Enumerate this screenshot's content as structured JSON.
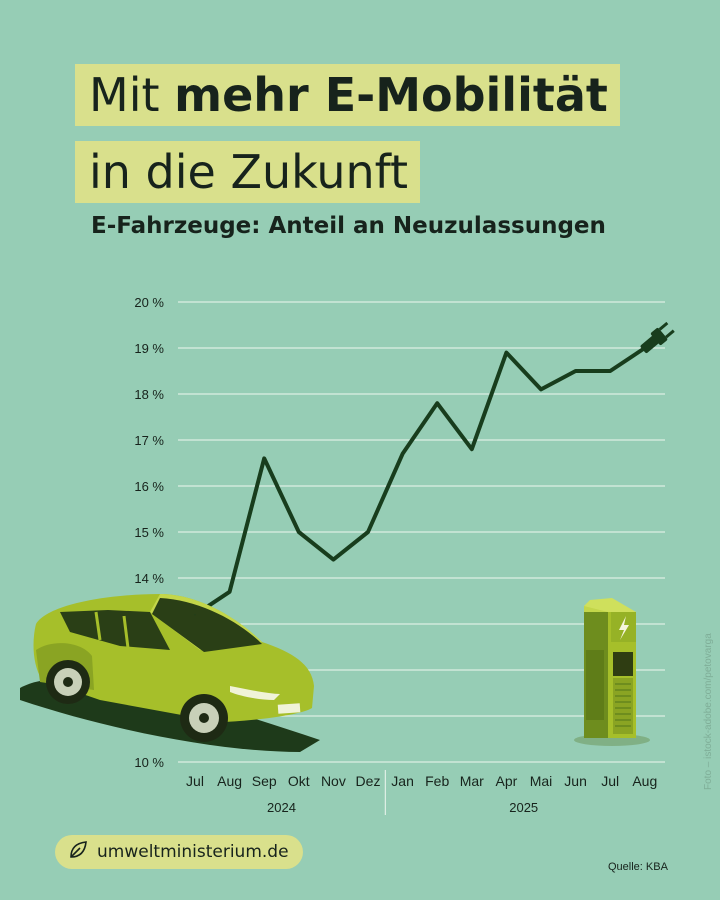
{
  "header": {
    "title_line1_normal": "Mit ",
    "title_line1_bold": "mehr E-Mobilität",
    "title_line2": "in die Zukunft",
    "subtitle": "E-Fahrzeuge: Anteil an Neuzulassungen"
  },
  "footer": {
    "website": "umweltministerium.de",
    "source": "Quelle: KBA",
    "photo_credit": "Foto – istock-adobe.com/petovarga"
  },
  "icons": {
    "badge": "leaf-icon",
    "line_end": "plug-icon",
    "charger": "charging-station-icon",
    "car": "electric-car-icon"
  },
  "colors": {
    "background": "#96cdb5",
    "highlight": "#d9e08c",
    "line": "#183d1d",
    "car": "#a6bf2a"
  },
  "chart_data": {
    "type": "line",
    "title": "E-Fahrzeuge: Anteil an Neuzulassungen",
    "categories": [
      "Jul",
      "Aug",
      "Sep",
      "Okt",
      "Nov",
      "Dez",
      "Jan",
      "Feb",
      "Mar",
      "Apr",
      "Mai",
      "Jun",
      "Jul",
      "Aug"
    ],
    "year_groups": [
      {
        "label": "2024",
        "months": [
          "Jul",
          "Aug",
          "Sep",
          "Okt",
          "Nov",
          "Dez"
        ]
      },
      {
        "label": "2025",
        "months": [
          "Jan",
          "Feb",
          "Mar",
          "Apr",
          "Mai",
          "Jun",
          "Jul",
          "Aug"
        ]
      }
    ],
    "series": [
      {
        "values": [
          13.2,
          13.7,
          16.6,
          15.0,
          14.4,
          15.0,
          16.7,
          17.8,
          16.8,
          18.9,
          18.1,
          18.5,
          18.5,
          19.0
        ]
      }
    ],
    "y_ticks": [
      {
        "value": 10,
        "label": "10 %"
      },
      {
        "value": 11,
        "label": ""
      },
      {
        "value": 12,
        "label": ""
      },
      {
        "value": 13,
        "label": ""
      },
      {
        "value": 14,
        "label": "14 %"
      },
      {
        "value": 15,
        "label": "15 %"
      },
      {
        "value": 16,
        "label": "16 %"
      },
      {
        "value": 17,
        "label": "17 %"
      },
      {
        "value": 18,
        "label": "18 %"
      },
      {
        "value": 19,
        "label": "19 %"
      },
      {
        "value": 20,
        "label": "20 %"
      }
    ],
    "ylim": [
      10,
      20
    ],
    "grid": true
  }
}
